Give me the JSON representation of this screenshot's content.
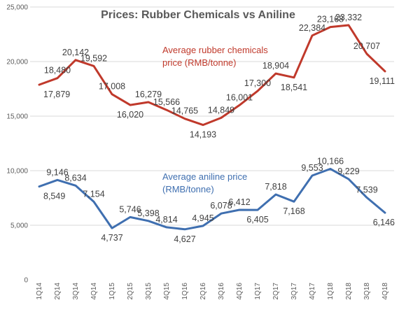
{
  "chart_data": {
    "type": "line",
    "title": "Prices: Rubber Chemicals vs Aniline",
    "categories": [
      "1Q14",
      "2Q14",
      "3Q14",
      "4Q14",
      "1Q15",
      "2Q15",
      "3Q15",
      "4Q15",
      "1Q16",
      "2Q16",
      "3Q16",
      "4Q16",
      "1Q17",
      "2Q17",
      "3Q17",
      "4Q17",
      "1Q18",
      "2Q18",
      "3Q18",
      "4Q18"
    ],
    "ylim": [
      0,
      25000
    ],
    "yticks": [
      "0",
      "5,000",
      "10,000",
      "15,000",
      "20,000",
      "25,000"
    ],
    "grid": true,
    "series": [
      {
        "name": "Average rubber chemicals price (RMB/tonne)",
        "color": "#c0392b",
        "values": [
          17879,
          18480,
          20142,
          19592,
          17008,
          16020,
          16279,
          15566,
          14765,
          14193,
          14849,
          16001,
          17300,
          18904,
          18541,
          22384,
          23168,
          23332,
          20707,
          19111
        ],
        "labels": [
          "17,879",
          "18,480",
          "20,142",
          "19,592",
          "17,008",
          "16,020",
          "16,279",
          "15,566",
          "14,765",
          "14,193",
          "14,849",
          "16,001",
          "17,300",
          "18,904",
          "18,541",
          "22,384",
          "23,168",
          "23,332",
          "20,707",
          "19,111"
        ]
      },
      {
        "name": "Average aniline price (RMB/tonne)",
        "color": "#3f6fb0",
        "values": [
          8549,
          9146,
          8634,
          7154,
          4737,
          5746,
          5398,
          4814,
          4627,
          4945,
          6078,
          6412,
          6405,
          7818,
          7168,
          9553,
          10166,
          9229,
          7539,
          6146
        ],
        "labels": [
          "8,549",
          "9,146",
          "8,634",
          "7,154",
          "4,737",
          "5,746",
          "5,398",
          "4,814",
          "4,627",
          "4,945",
          "6,078",
          "6,412",
          "6,405",
          "7,818",
          "7,168",
          "9,553",
          "10,166",
          "9,229",
          "7,539",
          "6,146"
        ]
      }
    ],
    "annotations": [
      {
        "series": 0,
        "lines": [
          "Average rubber chemicals",
          "price (RMB/tonne)"
        ]
      },
      {
        "series": 1,
        "lines": [
          "Average aniline price",
          "(RMB/tonne)"
        ]
      }
    ]
  }
}
